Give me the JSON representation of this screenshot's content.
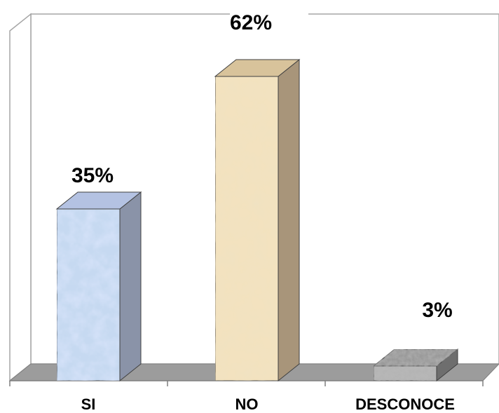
{
  "chart_data": {
    "type": "bar",
    "style": "3d",
    "categories": [
      "SI",
      "NO",
      "DESCONOCE"
    ],
    "values": [
      35,
      62,
      3
    ],
    "data_labels": [
      "35%",
      "62%",
      "3%"
    ],
    "value_unit": "%",
    "ylim": [
      0,
      70
    ],
    "grid": false,
    "legend": "none",
    "colors": {
      "SI": "#c6d9f1",
      "NO": "#f3e2bf",
      "DESCONOCE": "#b7b7b7",
      "floor": "#9c9c9c",
      "wall": "#ffffff"
    }
  }
}
